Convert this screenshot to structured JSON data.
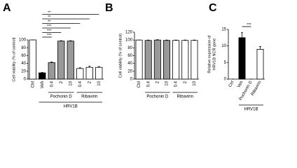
{
  "chart_data": [
    {
      "type": "bar",
      "label": "A",
      "ylabel": [
        "Cell viability (% of control)"
      ],
      "categories": [
        "Ctrl",
        "Veh",
        "0.4",
        "2",
        "10",
        "0.4",
        "2",
        "10"
      ],
      "values": [
        100,
        16,
        42,
        97,
        97,
        27,
        30,
        30
      ],
      "errors": [
        0,
        1,
        2,
        1,
        1,
        2,
        3,
        2
      ],
      "colors": [
        "#ffffff",
        "#000000",
        "#999999",
        "#999999",
        "#999999",
        "#ffffff",
        "#ffffff",
        "#ffffff"
      ],
      "ylim": [
        0,
        100
      ],
      "yticks": [
        0,
        20,
        40,
        60,
        80,
        100
      ],
      "groups": [
        {
          "label": "Pochonin D",
          "span": [
            2,
            4
          ]
        },
        {
          "label": "Ribavirin",
          "span": [
            5,
            7
          ]
        }
      ],
      "supergroups": [
        {
          "label": "HRV1B",
          "span": [
            1,
            7
          ]
        }
      ],
      "annotations": [
        {
          "text": "***",
          "span": [
            1,
            2
          ]
        },
        {
          "text": "***",
          "span": [
            1,
            3
          ]
        },
        {
          "text": "***",
          "span": [
            1,
            4
          ]
        },
        {
          "text": "**",
          "span": [
            1,
            5
          ]
        },
        {
          "text": "**",
          "span": [
            1,
            6
          ]
        },
        {
          "text": "**",
          "span": [
            1,
            7
          ]
        }
      ]
    },
    {
      "type": "bar",
      "label": "B",
      "ylabel": [
        "Cell viability (% of control)"
      ],
      "categories": [
        "Ctrl",
        "0.4",
        "2",
        "10",
        "0.4",
        "2",
        "10"
      ],
      "values": [
        100,
        99,
        100,
        99,
        99,
        99,
        99
      ],
      "errors": [
        0,
        1,
        1,
        1,
        1,
        1,
        1
      ],
      "colors": [
        "#ffffff",
        "#999999",
        "#999999",
        "#999999",
        "#ffffff",
        "#ffffff",
        "#ffffff"
      ],
      "ylim": [
        0,
        120
      ],
      "yticks": [
        0,
        20,
        40,
        60,
        80,
        100,
        120
      ],
      "groups": [
        {
          "label": "Pochonin D",
          "span": [
            1,
            3
          ]
        },
        {
          "label": "Ribavirin",
          "span": [
            4,
            6
          ]
        }
      ],
      "supergroups": [],
      "annotations": []
    },
    {
      "type": "bar",
      "label": "C",
      "ylabel": [
        "Relative expression of",
        "HRV1B NCR gene"
      ],
      "categories": [
        "Ctrl",
        "Veh",
        "Pochonin D",
        "Ribavirin"
      ],
      "values": [
        0,
        12.5,
        0,
        9
      ],
      "errors": [
        0,
        1.5,
        0,
        0.8
      ],
      "colors": [
        "#ffffff",
        "#000000",
        "#999999",
        "#ffffff"
      ],
      "ylim": [
        0,
        15
      ],
      "yticks": [
        0,
        5,
        10,
        15
      ],
      "groups": [],
      "supergroups": [
        {
          "label": "HRV1B",
          "span": [
            1,
            3
          ]
        }
      ],
      "annotations": [
        {
          "text": "***",
          "span": [
            1,
            2
          ]
        }
      ]
    }
  ]
}
